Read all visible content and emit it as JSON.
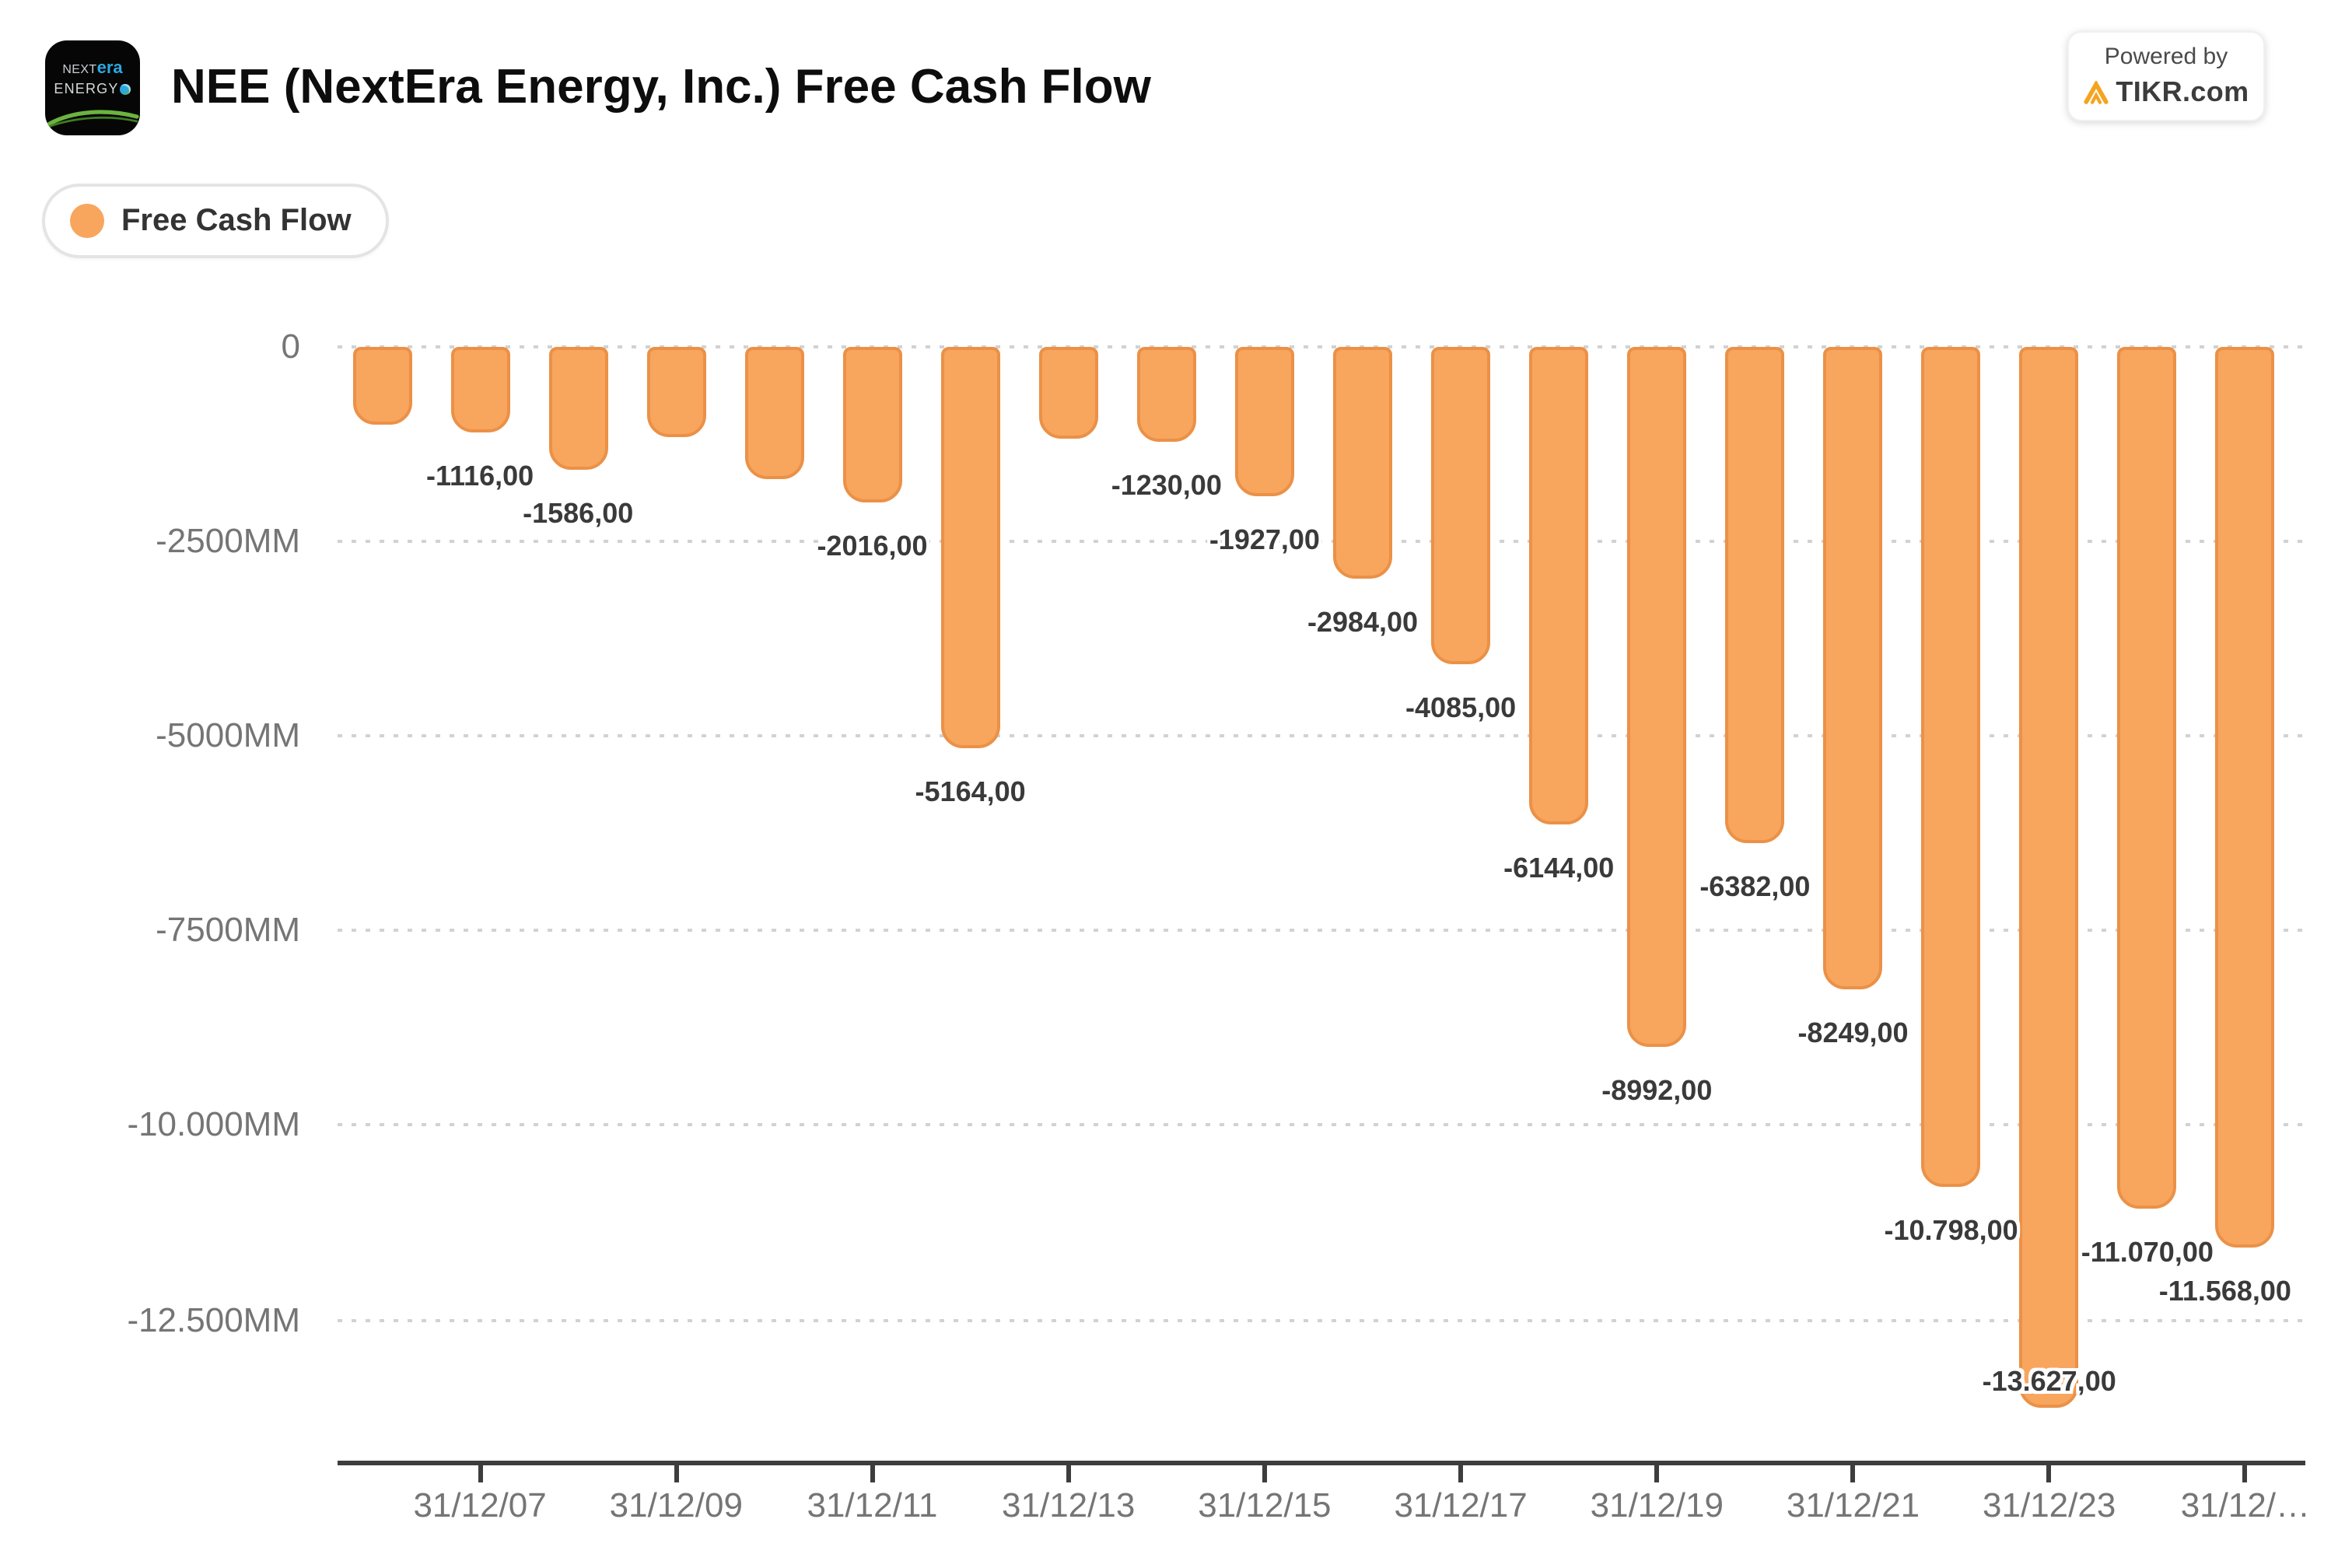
{
  "header": {
    "logo": {
      "line1_light": "NEXT",
      "line1_bold": "era",
      "line2": "ENERGY"
    },
    "title": "NEE (NextEra Energy, Inc.) Free Cash Flow",
    "badge": {
      "line1": "Powered by",
      "line2": "TIKR.com",
      "accent_color": "#F5A41F"
    }
  },
  "legend": {
    "items": [
      {
        "label": "Free Cash Flow",
        "color": "#F8A55E"
      }
    ]
  },
  "chart_data": {
    "type": "bar",
    "title": "NEE (NextEra Energy, Inc.) Free Cash Flow",
    "series_name": "Free Cash Flow",
    "unit": "MM",
    "bar_color": "#F8A55E",
    "bar_border_color": "#EB9147",
    "value_label_color": "#3A3A3A",
    "axis_text_color": "#757575",
    "grid": "dotted horizontal",
    "legend_position": "top-left",
    "ylim": [
      -14300,
      0
    ],
    "y_ticks": [
      {
        "label": "0",
        "value": 0
      },
      {
        "label": "-2500MM",
        "value": -2500
      },
      {
        "label": "-5000MM",
        "value": -5000
      },
      {
        "label": "-7500MM",
        "value": -7500
      },
      {
        "label": "-10.000MM",
        "value": -10000
      },
      {
        "label": "-12.500MM",
        "value": -12500
      }
    ],
    "x_ticks": [
      "31/12/07",
      "31/12/09",
      "31/12/11",
      "31/12/13",
      "31/12/15",
      "31/12/17",
      "31/12/19",
      "31/12/21",
      "31/12/23",
      "31/12/…"
    ],
    "bars": [
      {
        "x": "31/12/06",
        "value": -1000,
        "label": null,
        "estimated": true
      },
      {
        "x": "31/12/07",
        "value": -1116,
        "label": "-1116,00"
      },
      {
        "x": "31/12/08",
        "value": -1586,
        "label": "-1586,00"
      },
      {
        "x": "31/12/09",
        "value": -1175,
        "label": null,
        "estimated": true
      },
      {
        "x": "31/12/10",
        "value": -1710,
        "label": null,
        "estimated": true
      },
      {
        "x": "31/12/11",
        "value": -2016,
        "label": "-2016,00"
      },
      {
        "x": "31/12/12",
        "value": -5164,
        "label": "-5164,00"
      },
      {
        "x": "31/12/13",
        "value": -1190,
        "label": null,
        "estimated": true
      },
      {
        "x": "31/12/14",
        "value": -1230,
        "label": "-1230,00"
      },
      {
        "x": "31/12/15",
        "value": -1927,
        "label": "-1927,00"
      },
      {
        "x": "31/12/16",
        "value": -2984,
        "label": "-2984,00"
      },
      {
        "x": "31/12/17",
        "value": -4085,
        "label": "-4085,00"
      },
      {
        "x": "31/12/18",
        "value": -6144,
        "label": "-6144,00"
      },
      {
        "x": "31/12/19",
        "value": -8992,
        "label": "-8992,00"
      },
      {
        "x": "31/12/20",
        "value": -6382,
        "label": "-6382,00"
      },
      {
        "x": "31/12/21",
        "value": -8249,
        "label": "-8249,00"
      },
      {
        "x": "31/12/22",
        "value": -10798,
        "label": "-10.798,00"
      },
      {
        "x": "31/12/23",
        "value": -13627,
        "label": "-13.627,00"
      },
      {
        "x": "31/12/24",
        "value": -11070,
        "label": "-11.070,00"
      },
      {
        "x": "31/12/25",
        "value": -11568,
        "label": "-11.568,00"
      }
    ]
  }
}
